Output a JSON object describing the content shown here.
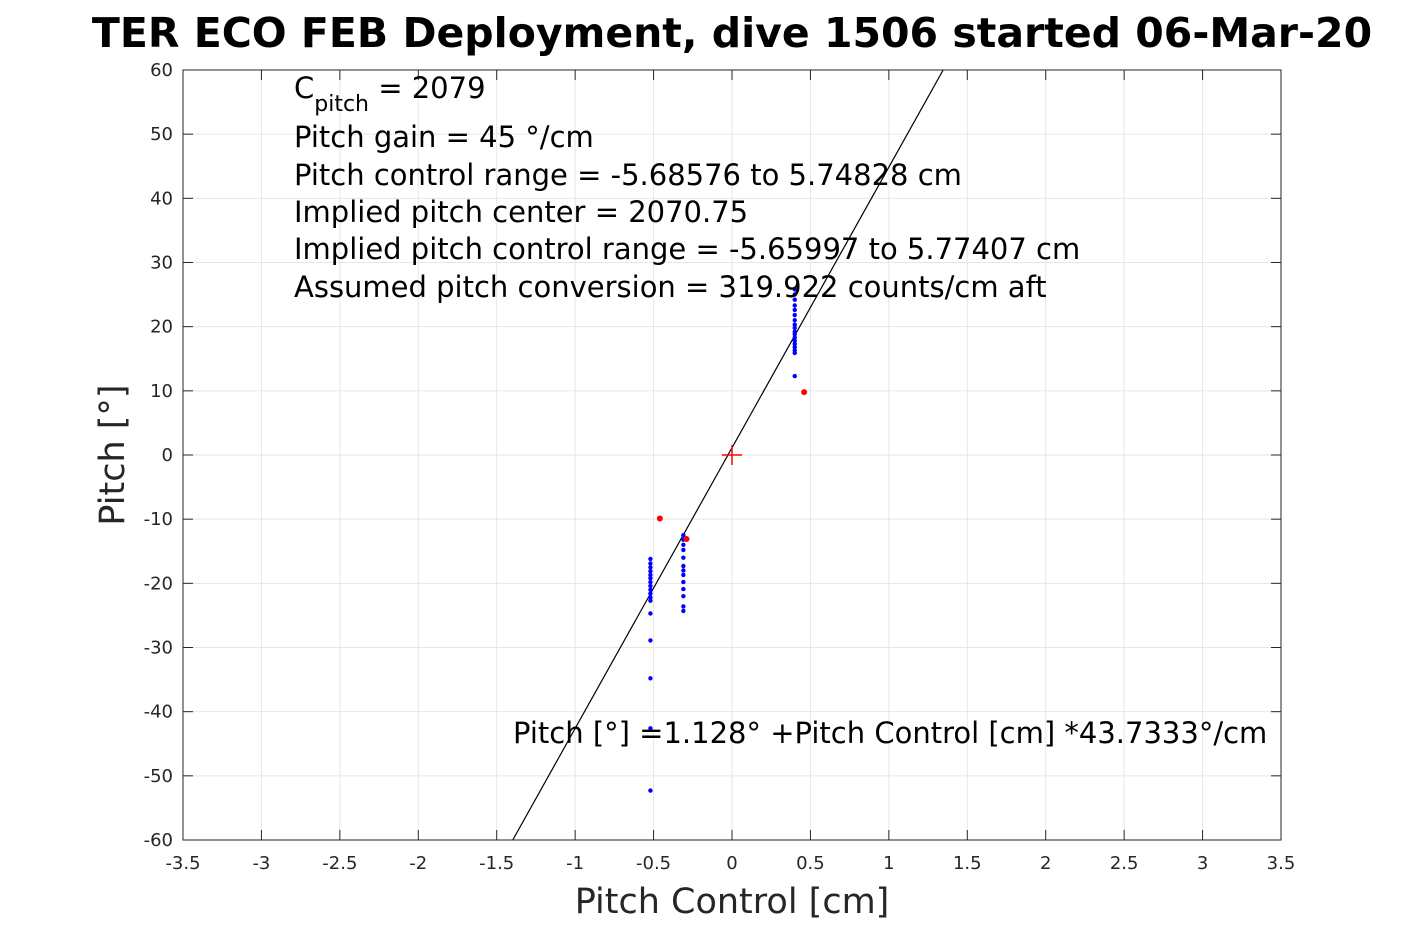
{
  "chart_data": {
    "type": "scatter",
    "title": "TER ECO FEB Deployment, dive 1506 started 06-Mar-20",
    "xlabel": "Pitch Control [cm]",
    "ylabel": "Pitch [°]",
    "xlim": [
      -3.5,
      3.5
    ],
    "ylim": [
      -60,
      60
    ],
    "xticks": [
      "-3.5",
      "-3",
      "-2.5",
      "-2",
      "-1.5",
      "-1",
      "-0.5",
      "0",
      "0.5",
      "1",
      "1.5",
      "2",
      "2.5",
      "3",
      "3.5"
    ],
    "yticks": [
      "60",
      "50",
      "40",
      "30",
      "20",
      "10",
      "0",
      "-10",
      "-20",
      "-30",
      "-40",
      "-50",
      "-60"
    ],
    "grid": true,
    "colors": {
      "samples": "#0000ff",
      "outliers": "#ff0000",
      "center": "#ff0000",
      "fit": "#000000"
    },
    "series": [
      {
        "role": "samples",
        "points": [
          [
            0.4,
            25.8
          ],
          [
            0.4,
            25.0
          ],
          [
            0.4,
            24.2
          ],
          [
            0.4,
            23.3
          ],
          [
            0.4,
            22.6
          ],
          [
            0.4,
            21.8
          ],
          [
            0.4,
            21.0
          ],
          [
            0.4,
            20.3
          ],
          [
            0.4,
            19.8
          ],
          [
            0.4,
            19.2
          ],
          [
            0.4,
            18.8
          ],
          [
            0.4,
            18.3
          ],
          [
            0.4,
            17.8
          ],
          [
            0.4,
            17.3
          ],
          [
            0.4,
            16.8
          ],
          [
            0.4,
            16.3
          ],
          [
            0.4,
            15.9
          ],
          [
            0.4,
            12.3
          ],
          [
            -0.52,
            -16.2
          ],
          [
            -0.52,
            -16.9
          ],
          [
            -0.52,
            -17.5
          ],
          [
            -0.52,
            -18.1
          ],
          [
            -0.52,
            -18.7
          ],
          [
            -0.52,
            -19.2
          ],
          [
            -0.52,
            -19.8
          ],
          [
            -0.52,
            -20.4
          ],
          [
            -0.52,
            -21.0
          ],
          [
            -0.52,
            -21.6
          ],
          [
            -0.52,
            -22.2
          ],
          [
            -0.52,
            -22.7
          ],
          [
            -0.52,
            -24.7
          ],
          [
            -0.52,
            -28.9
          ],
          [
            -0.52,
            -34.8
          ],
          [
            -0.52,
            -42.6
          ],
          [
            -0.52,
            -52.3
          ],
          [
            -0.31,
            -12.5
          ],
          [
            -0.31,
            -13.2
          ],
          [
            -0.31,
            -14.0
          ],
          [
            -0.31,
            -14.8
          ],
          [
            -0.31,
            -16.0
          ],
          [
            -0.31,
            -17.3
          ],
          [
            -0.31,
            -18.0
          ],
          [
            -0.31,
            -18.7
          ],
          [
            -0.31,
            -19.8
          ],
          [
            -0.31,
            -20.9
          ],
          [
            -0.31,
            -22.0
          ],
          [
            -0.31,
            -23.6
          ],
          [
            -0.31,
            -24.3
          ]
        ]
      },
      {
        "role": "outliers",
        "points": [
          [
            0.46,
            9.8
          ],
          [
            -0.46,
            -9.9
          ],
          [
            -0.29,
            -13.1
          ]
        ]
      }
    ],
    "center_marker": [
      0,
      0
    ],
    "fit_line": {
      "intercept": 1.128,
      "slope": 43.7333
    },
    "annotations": {
      "cpitch_symbol": "C",
      "cpitch_sub": "pitch",
      "cpitch_value": " = 2079",
      "lines": [
        "Pitch gain = 45 °/cm",
        "Pitch control range = -5.68576 to 5.74828 cm",
        "Implied pitch center = 2070.75",
        "Implied pitch control range = -5.65997 to 5.77407 cm",
        "Assumed pitch conversion = 319.922 counts/cm aft"
      ],
      "equation": "Pitch [°] =1.128° +Pitch Control [cm] *43.7333°/cm"
    }
  }
}
